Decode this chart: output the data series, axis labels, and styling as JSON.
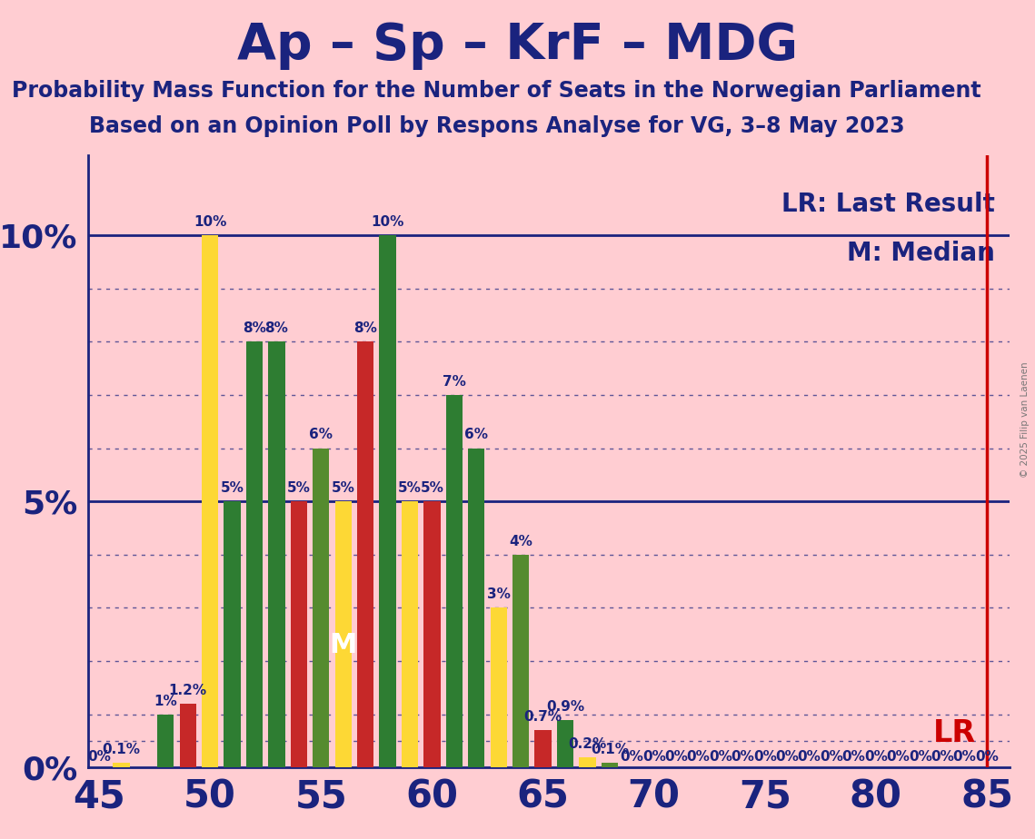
{
  "title": "Ap – Sp – KrF – MDG",
  "subtitle1": "Probability Mass Function for the Number of Seats in the Norwegian Parliament",
  "subtitle2": "Based on an Opinion Poll by Respons Analyse for VG, 3–8 May 2023",
  "copyright": "© 2025 Filip van Laenen",
  "legend_lr": "LR: Last Result",
  "legend_m": "M: Median",
  "median_label": "M",
  "lr_label": "LR",
  "background_color": "#FFCDD2",
  "title_color": "#1a237e",
  "lr_line_color": "#cc0000",
  "colors": {
    "dark_green": "#2e7d32",
    "yellow": "#fdd835",
    "red": "#c62828",
    "light_green": "#558b2f"
  },
  "xlim_left": 44.5,
  "xlim_right": 86.0,
  "ylim_top": 11.5,
  "yticks": [
    0,
    5,
    10
  ],
  "ytick_labels": [
    "0%",
    "5%",
    "10%"
  ],
  "xticks": [
    45,
    50,
    55,
    60,
    65,
    70,
    75,
    80,
    85
  ],
  "lr_x": 85,
  "median_x": 56,
  "median_y": 2.3,
  "bars": [
    {
      "seat": 45,
      "color": "dark_green",
      "value": 0.0
    },
    {
      "seat": 46,
      "color": "yellow",
      "value": 0.1
    },
    {
      "seat": 48,
      "color": "dark_green",
      "value": 1.0
    },
    {
      "seat": 49,
      "color": "red",
      "value": 1.2
    },
    {
      "seat": 50,
      "color": "yellow",
      "value": 10.0
    },
    {
      "seat": 51,
      "color": "dark_green",
      "value": 5.0
    },
    {
      "seat": 52,
      "color": "dark_green",
      "value": 8.0
    },
    {
      "seat": 53,
      "color": "dark_green",
      "value": 8.0
    },
    {
      "seat": 54,
      "color": "red",
      "value": 5.0
    },
    {
      "seat": 55,
      "color": "light_green",
      "value": 6.0
    },
    {
      "seat": 56,
      "color": "yellow",
      "value": 5.0
    },
    {
      "seat": 57,
      "color": "red",
      "value": 8.0
    },
    {
      "seat": 58,
      "color": "dark_green",
      "value": 10.0
    },
    {
      "seat": 59,
      "color": "yellow",
      "value": 5.0
    },
    {
      "seat": 60,
      "color": "red",
      "value": 5.0
    },
    {
      "seat": 61,
      "color": "dark_green",
      "value": 7.0
    },
    {
      "seat": 62,
      "color": "dark_green",
      "value": 6.0
    },
    {
      "seat": 63,
      "color": "yellow",
      "value": 3.0
    },
    {
      "seat": 64,
      "color": "light_green",
      "value": 4.0
    },
    {
      "seat": 65,
      "color": "red",
      "value": 0.7
    },
    {
      "seat": 66,
      "color": "dark_green",
      "value": 0.9
    },
    {
      "seat": 67,
      "color": "yellow",
      "value": 0.2
    },
    {
      "seat": 68,
      "color": "light_green",
      "value": 0.1
    },
    {
      "seat": 69,
      "color": "dark_green",
      "value": 0.0
    },
    {
      "seat": 70,
      "color": "dark_green",
      "value": 0.0
    },
    {
      "seat": 71,
      "color": "dark_green",
      "value": 0.0
    },
    {
      "seat": 72,
      "color": "dark_green",
      "value": 0.0
    },
    {
      "seat": 73,
      "color": "dark_green",
      "value": 0.0
    },
    {
      "seat": 74,
      "color": "dark_green",
      "value": 0.0
    },
    {
      "seat": 75,
      "color": "dark_green",
      "value": 0.0
    },
    {
      "seat": 76,
      "color": "dark_green",
      "value": 0.0
    },
    {
      "seat": 77,
      "color": "dark_green",
      "value": 0.0
    },
    {
      "seat": 78,
      "color": "dark_green",
      "value": 0.0
    },
    {
      "seat": 79,
      "color": "dark_green",
      "value": 0.0
    },
    {
      "seat": 80,
      "color": "dark_green",
      "value": 0.0
    },
    {
      "seat": 81,
      "color": "dark_green",
      "value": 0.0
    },
    {
      "seat": 82,
      "color": "dark_green",
      "value": 0.0
    },
    {
      "seat": 83,
      "color": "dark_green",
      "value": 0.0
    },
    {
      "seat": 84,
      "color": "dark_green",
      "value": 0.0
    },
    {
      "seat": 85,
      "color": "dark_green",
      "value": 0.0
    }
  ],
  "bar_width": 0.75,
  "fontsize_title": 40,
  "fontsize_subtitle": 17,
  "fontsize_legend": 20,
  "fontsize_ytick": 26,
  "fontsize_xtick": 30,
  "fontsize_bar_label": 11,
  "fontsize_lr_label": 24,
  "fontsize_median_label": 22
}
